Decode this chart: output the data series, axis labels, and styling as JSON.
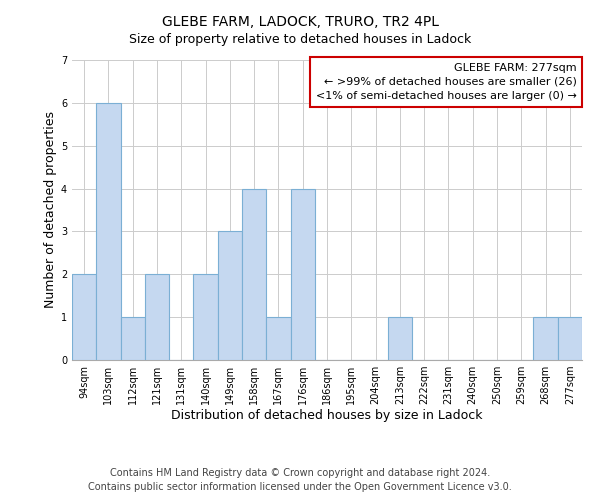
{
  "title": "GLEBE FARM, LADOCK, TRURO, TR2 4PL",
  "subtitle": "Size of property relative to detached houses in Ladock",
  "xlabel": "Distribution of detached houses by size in Ladock",
  "ylabel": "Number of detached properties",
  "bar_labels": [
    "94sqm",
    "103sqm",
    "112sqm",
    "121sqm",
    "131sqm",
    "140sqm",
    "149sqm",
    "158sqm",
    "167sqm",
    "176sqm",
    "186sqm",
    "195sqm",
    "204sqm",
    "213sqm",
    "222sqm",
    "231sqm",
    "240sqm",
    "250sqm",
    "259sqm",
    "268sqm",
    "277sqm"
  ],
  "bar_values": [
    2,
    6,
    1,
    2,
    0,
    2,
    3,
    4,
    1,
    4,
    0,
    0,
    0,
    1,
    0,
    0,
    0,
    0,
    0,
    1,
    1
  ],
  "bar_color": "#c5d8f0",
  "bar_edge_color": "#7bafd4",
  "ylim": [
    0,
    7
  ],
  "yticks": [
    0,
    1,
    2,
    3,
    4,
    5,
    6,
    7
  ],
  "legend_title": "GLEBE FARM: 277sqm",
  "legend_line1": "← >99% of detached houses are smaller (26)",
  "legend_line2": "<1% of semi-detached houses are larger (0) →",
  "legend_box_facecolor": "#ffffff",
  "legend_box_edgecolor": "#cc0000",
  "footer_line1": "Contains HM Land Registry data © Crown copyright and database right 2024.",
  "footer_line2": "Contains public sector information licensed under the Open Government Licence v3.0.",
  "grid_color": "#cccccc",
  "bg_color": "#ffffff",
  "title_fontsize": 10,
  "subtitle_fontsize": 9,
  "axis_label_fontsize": 9,
  "tick_fontsize": 7,
  "legend_fontsize": 8,
  "footer_fontsize": 7
}
